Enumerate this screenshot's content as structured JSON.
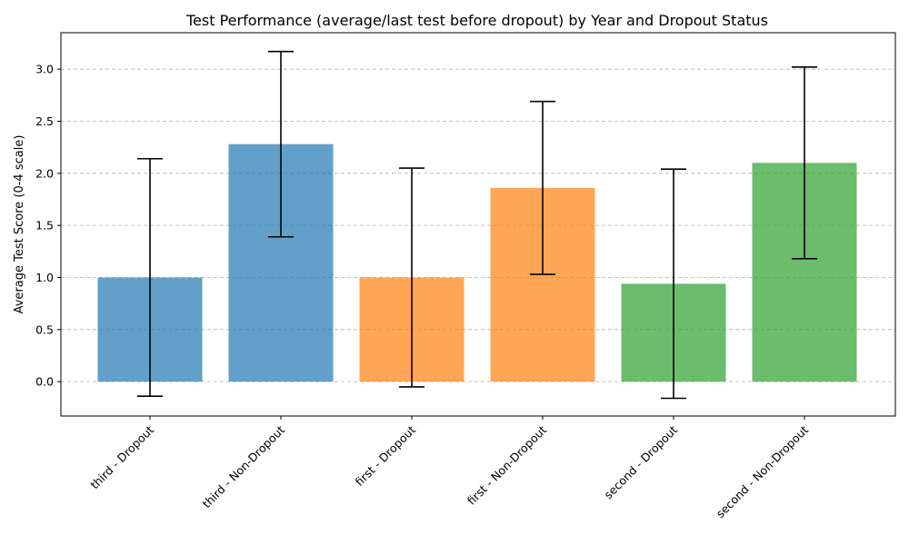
{
  "chart_data": {
    "type": "bar",
    "title": "Test Performance (average/last test before dropout) by Year and Dropout Status",
    "xlabel": "",
    "ylabel": "Average Test Score (0-4 scale)",
    "categories": [
      "third - Dropout",
      "third - Non-Dropout",
      "first - Dropout",
      "first - Non-Dropout",
      "second - Dropout",
      "second - Non-Dropout"
    ],
    "values": [
      1.0,
      2.28,
      1.0,
      1.86,
      0.94,
      2.1
    ],
    "error": [
      1.14,
      0.89,
      1.05,
      0.83,
      1.1,
      0.92
    ],
    "colors": [
      "#1f77b4",
      "#1f77b4",
      "#ff7f0e",
      "#ff7f0e",
      "#2ca02c",
      "#2ca02c"
    ],
    "bar_alpha": 0.7,
    "yticks": [
      0.0,
      0.5,
      1.0,
      1.5,
      2.0,
      2.5,
      3.0
    ],
    "ytick_labels": [
      "0.0",
      "0.5",
      "1.0",
      "1.5",
      "2.0",
      "2.5",
      "3.0"
    ],
    "ylim": [
      -0.33,
      3.35
    ],
    "grid": "y-dashed"
  }
}
